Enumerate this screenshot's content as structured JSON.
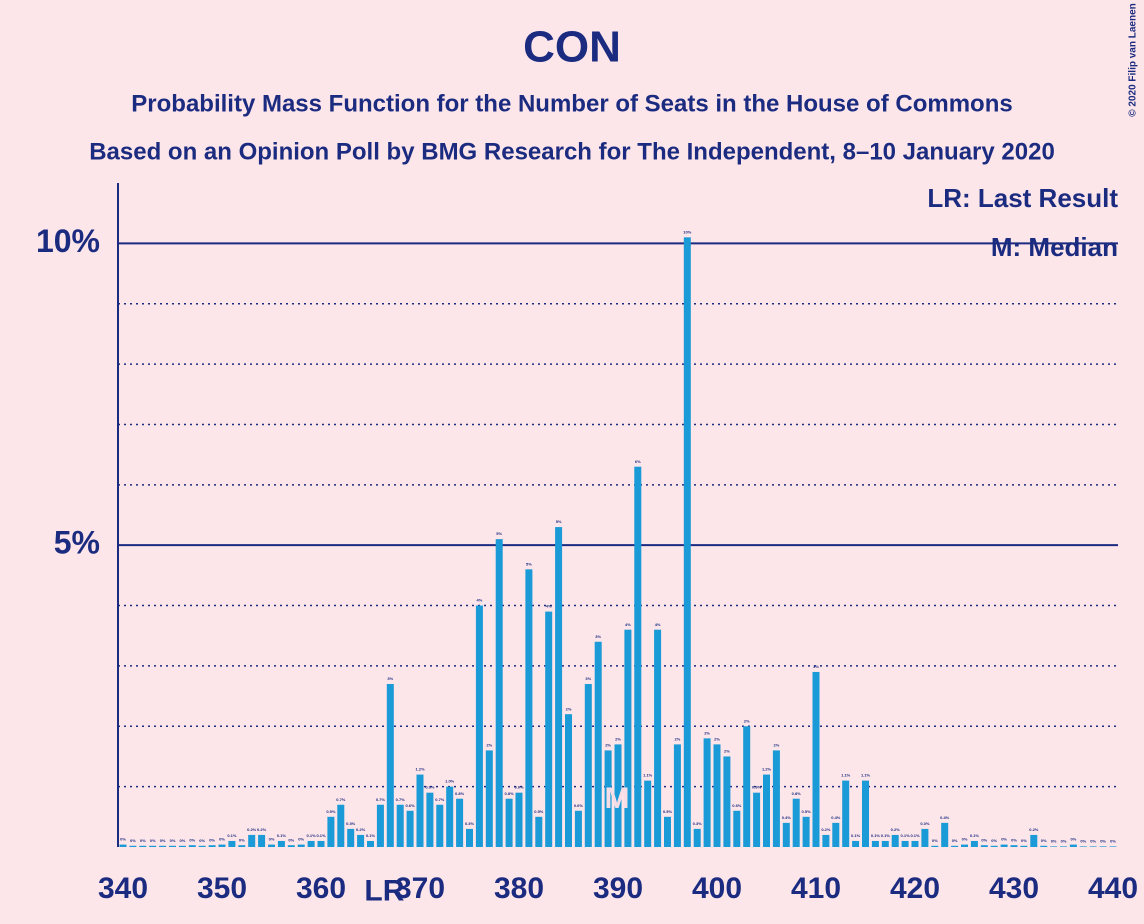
{
  "chart_data": {
    "type": "bar",
    "title": "CON",
    "subtitle": [
      "Probability Mass Function for the Number of Seats in the House of Commons",
      "Based on an Opinion Poll by BMG Research for The Independent, 8–10 January 2020"
    ],
    "copyright": "© 2020 Filip van Laenen",
    "x": [
      340,
      341,
      342,
      343,
      344,
      345,
      346,
      347,
      348,
      349,
      350,
      351,
      352,
      353,
      354,
      355,
      356,
      357,
      358,
      359,
      360,
      361,
      362,
      363,
      364,
      365,
      366,
      367,
      368,
      369,
      370,
      371,
      372,
      373,
      374,
      375,
      376,
      377,
      378,
      379,
      380,
      381,
      382,
      383,
      384,
      385,
      386,
      387,
      388,
      389,
      390,
      391,
      392,
      393,
      394,
      395,
      396,
      397,
      398,
      399,
      400,
      401,
      402,
      403,
      404,
      405,
      406,
      407,
      408,
      409,
      410,
      411,
      412,
      413,
      414,
      415,
      416,
      417,
      418,
      419,
      420,
      421,
      422,
      423,
      424,
      425,
      426,
      427,
      428,
      429,
      430,
      431,
      432,
      433,
      434,
      435,
      436,
      437,
      438,
      439,
      440
    ],
    "values": [
      0.04,
      0.02,
      0.02,
      0.02,
      0.02,
      0.02,
      0.02,
      0.03,
      0.02,
      0.03,
      0.04,
      0.1,
      0.03,
      0.2,
      0.2,
      0.04,
      0.1,
      0.03,
      0.04,
      0.1,
      0.1,
      0.5,
      0.7,
      0.3,
      0.2,
      0.1,
      0.7,
      2.7,
      0.7,
      0.6,
      1.2,
      0.9,
      0.7,
      1.0,
      0.8,
      0.3,
      4.0,
      1.6,
      5.1,
      0.8,
      0.9,
      4.6,
      0.5,
      3.9,
      5.3,
      2.2,
      0.6,
      2.7,
      3.4,
      1.6,
      1.7,
      3.6,
      6.3,
      1.1,
      3.6,
      0.5,
      1.7,
      10.1,
      0.3,
      1.8,
      1.7,
      1.5,
      0.6,
      2.0,
      0.9,
      1.2,
      1.6,
      0.4,
      0.8,
      0.5,
      2.9,
      0.2,
      0.4,
      1.1,
      0.1,
      1.1,
      0.1,
      0.1,
      0.2,
      0.1,
      0.1,
      0.3,
      0.02,
      0.4,
      0.02,
      0.04,
      0.1,
      0.03,
      0.02,
      0.04,
      0.03,
      0.02,
      0.2,
      0.02,
      0.01,
      0.01,
      0.04,
      0.01,
      0.01,
      0.01,
      0.01
    ],
    "value_labels": [
      "0%",
      "0%",
      "0%",
      "0%",
      "0%",
      "0%",
      "0%",
      "0%",
      "0%",
      "0%",
      "0%",
      "0.1%",
      "0%",
      "0.2%",
      "0.2%",
      "0%",
      "0.1%",
      "0%",
      "0%",
      "0.1%",
      "0.1%",
      "0.5%",
      "0.7%",
      "0.3%",
      "0.2%",
      "0.1%",
      "0.7%",
      "3%",
      "0.7%",
      "0.6%",
      "1.2%",
      "0.9%",
      "0.7%",
      "1.0%",
      "0.8%",
      "0.3%",
      "4%",
      "2%",
      "5%",
      "0.8%",
      "0.9%",
      "5%",
      "0.5%",
      "4%",
      "5%",
      "2%",
      "0.6%",
      "3%",
      "3%",
      "2%",
      "2%",
      "4%",
      "6%",
      "1.1%",
      "4%",
      "0.5%",
      "2%",
      "10%",
      "0.3%",
      "2%",
      "2%",
      "2%",
      "0.6%",
      "2%",
      "0.9%",
      "1.2%",
      "2%",
      "0.4%",
      "0.8%",
      "0.5%",
      "3%",
      "0.2%",
      "0.4%",
      "1.1%",
      "0.1%",
      "1.1%",
      "0.1%",
      "0.1%",
      "0.2%",
      "0.1%",
      "0.1%",
      "0.3%",
      "0%",
      "0.4%",
      "0%",
      "0%",
      "0.1%",
      "0%",
      "0%",
      "0%",
      "0%",
      "0%",
      "0.2%",
      "0%",
      "0%",
      "0%",
      "0%",
      "0%",
      "0%",
      "0%",
      "0%"
    ],
    "color": "#1a9ad6",
    "xlim": [
      340,
      440
    ],
    "xticks": [
      340,
      350,
      360,
      370,
      380,
      390,
      400,
      410,
      420,
      430,
      440
    ],
    "ylim": [
      0,
      11
    ],
    "yticks": [
      {
        "value": 5,
        "label": "5%"
      },
      {
        "value": 10,
        "label": "10%"
      }
    ],
    "minor_yticks": [
      1,
      2,
      3,
      4,
      6,
      7,
      8,
      9
    ],
    "last_result": {
      "x": 366,
      "label": "LR"
    },
    "median": {
      "x": 390,
      "label": "M"
    },
    "legend": [
      "LR: Last Result",
      "M: Median"
    ]
  }
}
